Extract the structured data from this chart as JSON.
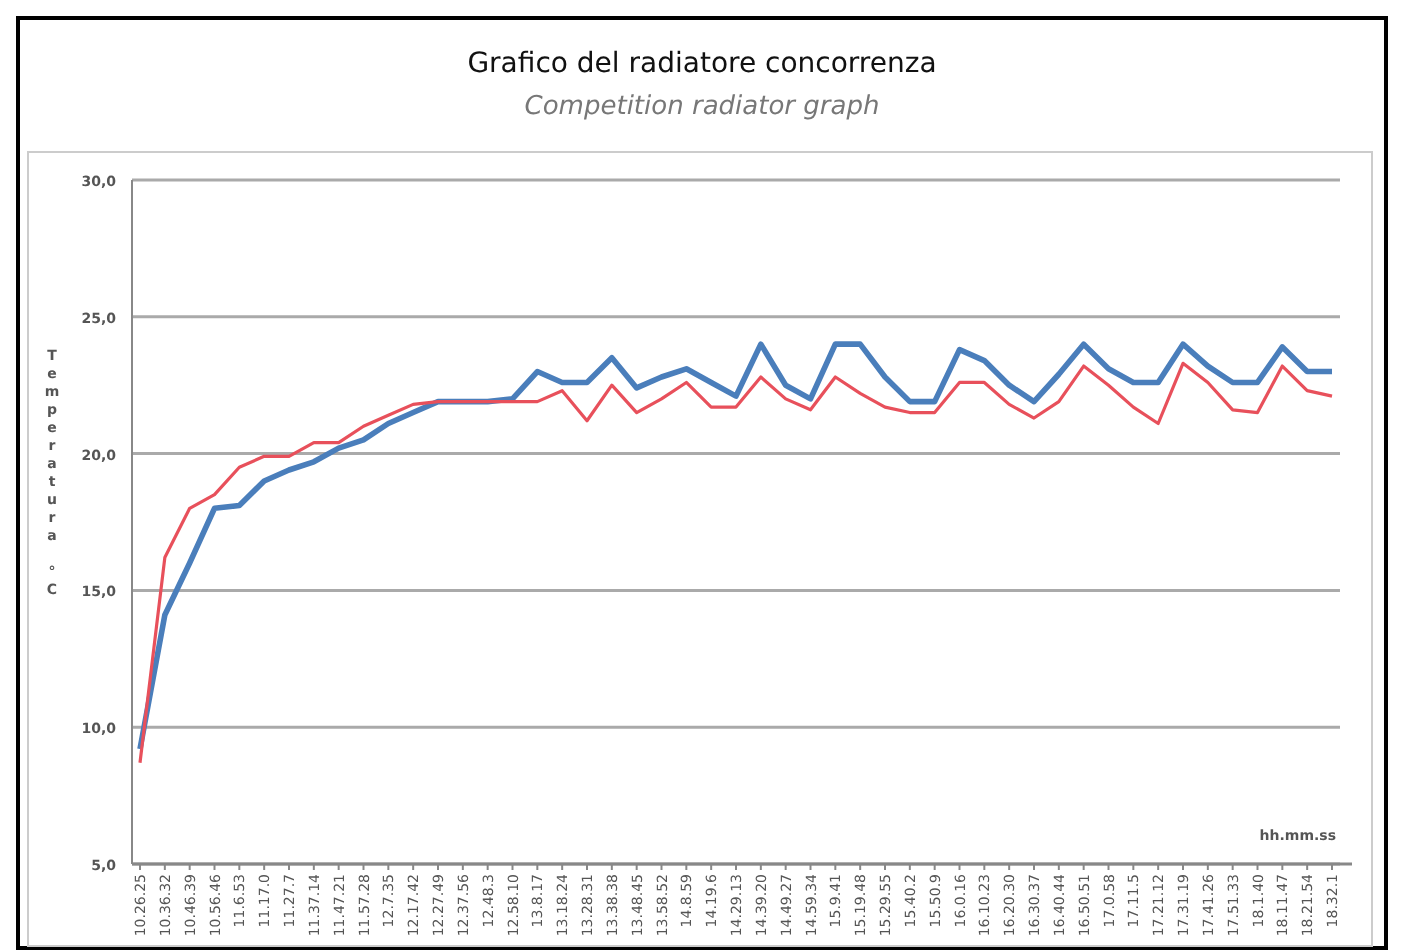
{
  "chart_data": {
    "type": "line",
    "title": "Grafico del radiatore concorrenza",
    "subtitle": "Competition radiator graph",
    "xlabel": "hh.mm.ss",
    "ylabel": "Temperatura °C",
    "categories": [
      "10.26.25",
      "10.36.32",
      "10.46.39",
      "10.56.46",
      "11.6.53",
      "11.17.0",
      "11.27.7",
      "11.37.14",
      "11.47.21",
      "11.57.28",
      "12.7.35",
      "12.17.42",
      "12.27.49",
      "12.37.56",
      "12.48.3",
      "12.58.10",
      "13.8.17",
      "13.18.24",
      "13.28.31",
      "13.38.38",
      "13.48.45",
      "13.58.52",
      "14.8.59",
      "14.19.6",
      "14.29.13",
      "14.39.20",
      "14.49.27",
      "14.59.34",
      "15.9.41",
      "15.19.48",
      "15.29.55",
      "15.40.2",
      "15.50.9",
      "16.0.16",
      "16.10.23",
      "16.20.30",
      "16.30.37",
      "16.40.44",
      "16.50.51",
      "17.0.58",
      "17.11.5",
      "17.21.12",
      "17.31.19",
      "17.41.26",
      "17.51.33",
      "18.1.40",
      "18.11.47",
      "18.21.54",
      "18.32.1"
    ],
    "ylim": [
      5,
      30
    ],
    "yticks": [
      {
        "value": 5,
        "label": "5,0"
      },
      {
        "value": 10,
        "label": "10,0"
      },
      {
        "value": 15,
        "label": "15,0"
      },
      {
        "value": 20,
        "label": "20,0"
      },
      {
        "value": 25,
        "label": "25,0"
      },
      {
        "value": 30,
        "label": "30,0"
      }
    ],
    "grid": "y",
    "marker": "none",
    "line_style": "solid",
    "series": [
      {
        "color": "#4a7ebb",
        "values": [
          9.2,
          14.1,
          16.0,
          18.0,
          18.1,
          19.0,
          19.4,
          19.7,
          20.2,
          20.5,
          21.1,
          21.5,
          21.9,
          21.9,
          21.9,
          22.0,
          23.0,
          22.6,
          22.6,
          23.5,
          22.4,
          22.8,
          23.1,
          22.6,
          22.1,
          24.0,
          22.5,
          22.0,
          24.0,
          24.0,
          22.8,
          21.9,
          21.9,
          23.8,
          23.4,
          22.5,
          21.9,
          22.9,
          24.0,
          23.1,
          22.6,
          22.6,
          24.0,
          23.2,
          22.6,
          22.6,
          23.9,
          23.0,
          23.0
        ]
      },
      {
        "color": "#e8505b",
        "values": [
          8.7,
          16.2,
          18.0,
          18.5,
          19.5,
          19.9,
          19.9,
          20.4,
          20.4,
          21.0,
          21.4,
          21.8,
          21.9,
          21.9,
          21.9,
          21.9,
          21.9,
          22.3,
          21.2,
          22.5,
          21.5,
          22.0,
          22.6,
          21.7,
          21.7,
          22.8,
          22.0,
          21.6,
          22.8,
          22.2,
          21.7,
          21.5,
          21.5,
          22.6,
          22.6,
          21.8,
          21.3,
          21.9,
          23.2,
          22.5,
          21.7,
          21.1,
          23.3,
          22.6,
          21.6,
          21.5,
          23.2,
          22.3,
          22.1
        ]
      }
    ]
  }
}
